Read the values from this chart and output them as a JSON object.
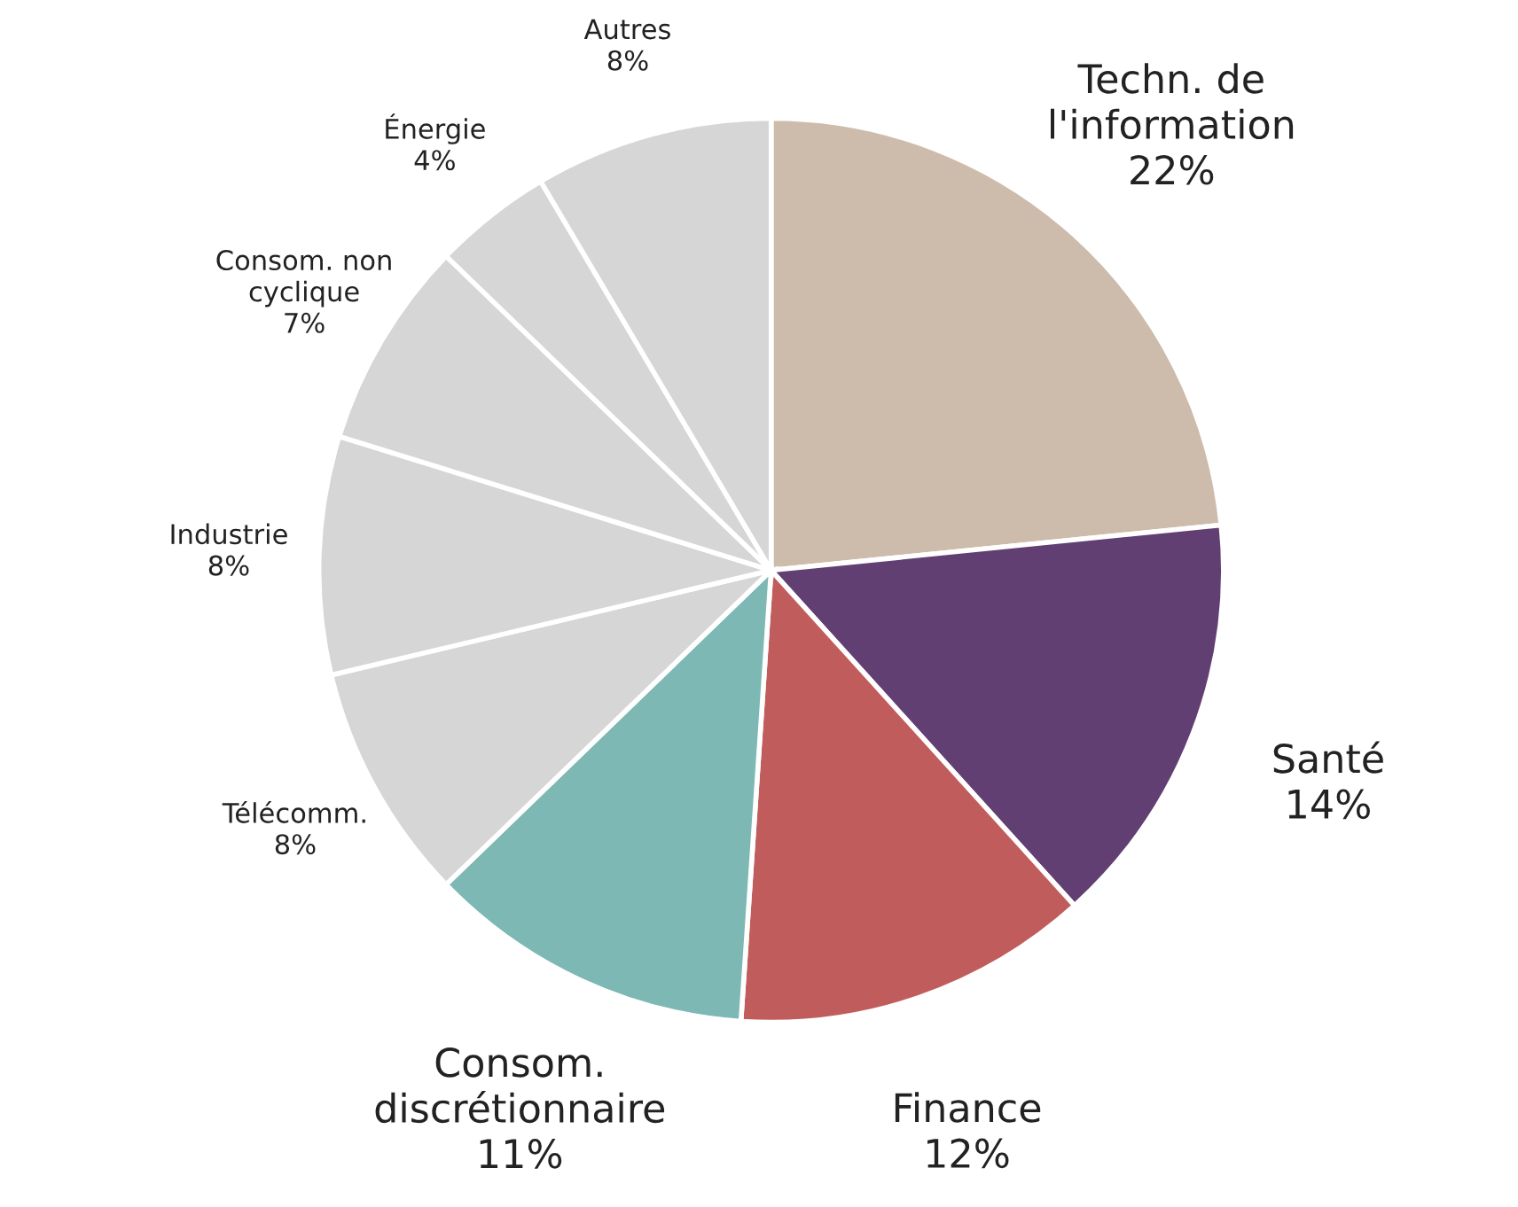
{
  "chart_data": {
    "type": "pie",
    "categories": [
      "Techn. de\nl'information",
      "Santé",
      "Finance",
      "Consom.\ndiscrétionnaire",
      "Télécomm.",
      "Industrie",
      "Consom. non\ncyclique",
      "Énergie",
      "Autres"
    ],
    "values": [
      22,
      14,
      12,
      11,
      8,
      8,
      7,
      4,
      8
    ],
    "value_labels": [
      "22%",
      "14%",
      "12%",
      "11%",
      "8%",
      "8%",
      "7%",
      "4%",
      "8%"
    ],
    "colors": [
      "#cdbcab",
      "#623f72",
      "#c05d5c",
      "#7db8b4",
      "#d6d6d6",
      "#d6d6d6",
      "#d6d6d6",
      "#d6d6d6",
      "#d6d6d6"
    ]
  }
}
